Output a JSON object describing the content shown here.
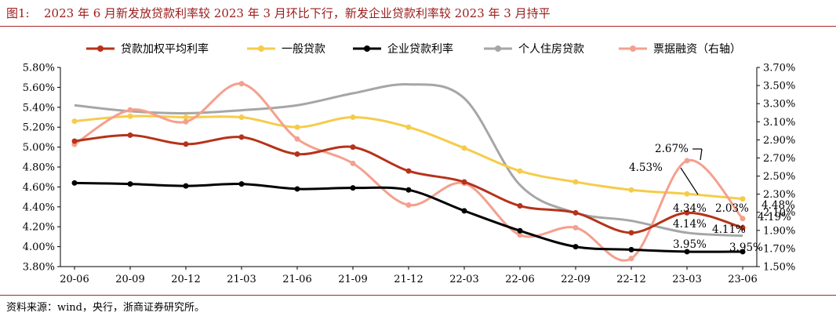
{
  "figure": {
    "label": "图1:",
    "title": "2023 年 6 月新发放贷款利率较 2023 年 3 月环比下行，新发企业贷款利率较 2023 年 3 月持平",
    "source": "资料来源：wind，央行，浙商证券研究所。"
  },
  "chart_data": {
    "type": "line",
    "x": [
      "20-06",
      "20-09",
      "20-12",
      "21-03",
      "21-06",
      "21-09",
      "21-12",
      "22-03",
      "22-06",
      "22-09",
      "22-12",
      "23-03",
      "23-06"
    ],
    "y_left": {
      "min": 3.8,
      "max": 5.8,
      "ticks": [
        "3.80%",
        "4.00%",
        "4.20%",
        "4.40%",
        "4.60%",
        "4.80%",
        "5.00%",
        "5.20%",
        "5.40%",
        "5.60%",
        "5.80%"
      ]
    },
    "y_right": {
      "min": 1.5,
      "max": 3.7,
      "ticks": [
        "1.50%",
        "1.70%",
        "1.90%",
        "2.10%",
        "2.30%",
        "2.50%",
        "2.70%",
        "2.90%",
        "3.10%",
        "3.30%",
        "3.50%",
        "3.70%"
      ]
    },
    "legend_position": "top",
    "grid": false,
    "series": [
      {
        "name": "贷款加权平均利率",
        "axis": "left",
        "color": "#b5331a",
        "marker": true,
        "values": [
          5.06,
          5.12,
          5.03,
          5.1,
          4.93,
          5.0,
          4.76,
          4.65,
          4.41,
          4.34,
          4.14,
          4.34,
          4.19
        ]
      },
      {
        "name": "一般贷款",
        "axis": "left",
        "color": "#f5cc4a",
        "marker": true,
        "values": [
          5.26,
          5.31,
          5.3,
          5.3,
          5.2,
          5.3,
          5.2,
          4.99,
          4.76,
          4.65,
          4.57,
          4.53,
          4.48
        ]
      },
      {
        "name": "企业贷款利率",
        "axis": "left",
        "color": "#000000",
        "marker": true,
        "values": [
          4.64,
          4.63,
          4.61,
          4.63,
          4.58,
          4.59,
          4.57,
          4.36,
          4.16,
          4.0,
          3.97,
          3.95,
          3.95
        ]
      },
      {
        "name": "个人住房贷款",
        "axis": "left",
        "color": "#a6a6a6",
        "marker": false,
        "values": [
          5.42,
          5.36,
          5.34,
          5.37,
          5.42,
          5.54,
          5.63,
          5.49,
          4.62,
          4.34,
          4.26,
          4.14,
          4.11
        ]
      },
      {
        "name": "票据融资（右轴）",
        "axis": "right",
        "color": "#f4a08e",
        "marker": true,
        "values": [
          2.85,
          3.23,
          3.1,
          3.52,
          2.91,
          2.64,
          2.18,
          2.42,
          1.85,
          1.93,
          1.59,
          2.67,
          2.03
        ]
      }
    ],
    "annotations": [
      "4.53%",
      "4.48%",
      "2.67%",
      "4.34%",
      "2.03%",
      "4.19%",
      "4.14%",
      "4.11%",
      "3.95%",
      "3.95%"
    ]
  }
}
